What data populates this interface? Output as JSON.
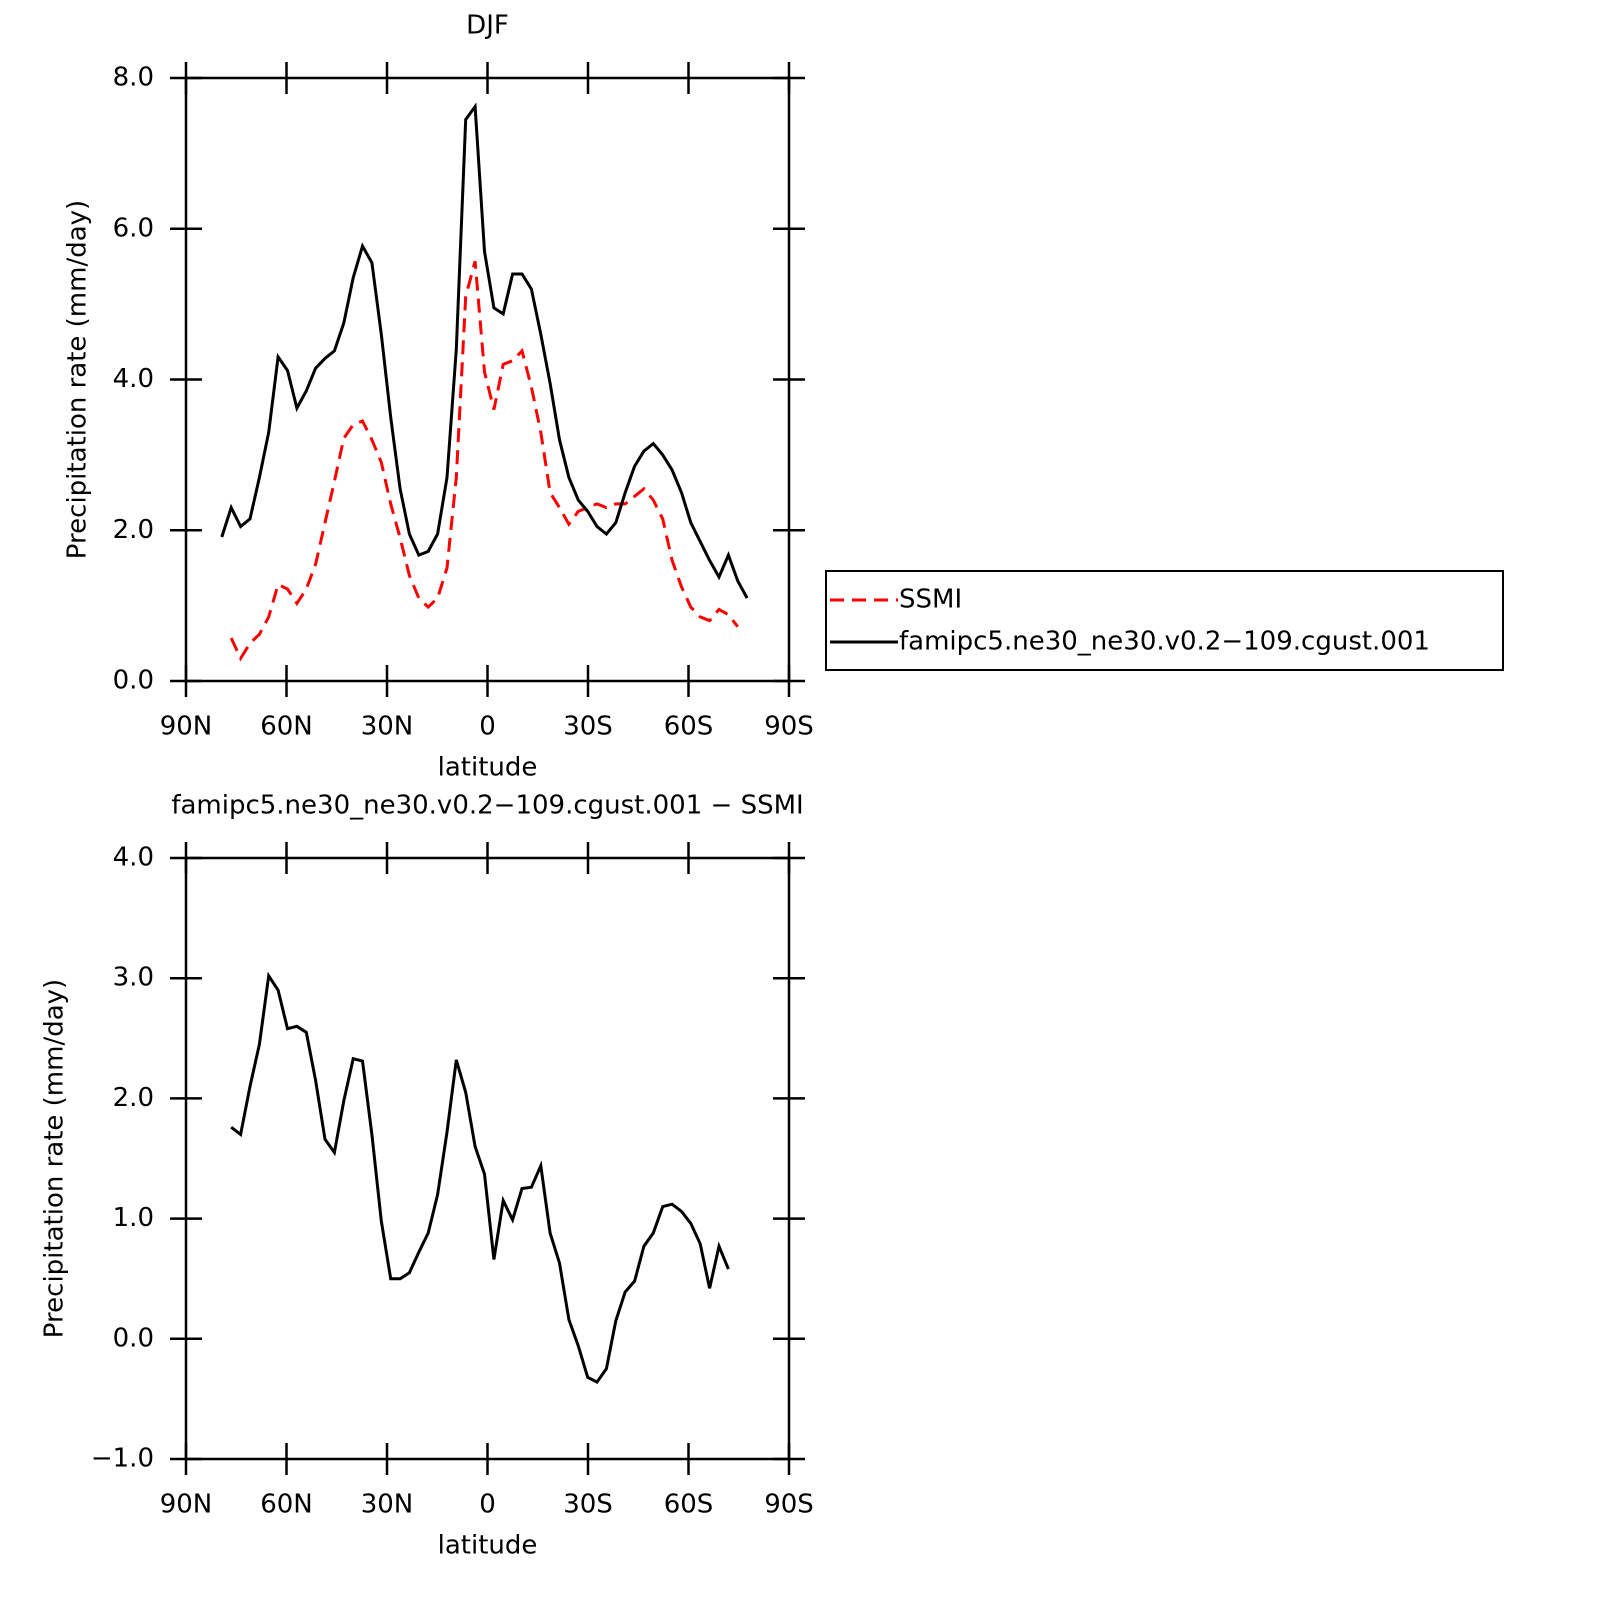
{
  "chart_data": [
    {
      "type": "line",
      "title": "DJF",
      "xlabel": "latitude",
      "ylabel": "Precipitation rate (mm/day)",
      "x": [
        79.3,
        76.5,
        73.7,
        70.9,
        68.1,
        65.3,
        62.5,
        59.7,
        56.9,
        54.1,
        51.3,
        48.5,
        45.7,
        42.9,
        40.1,
        37.3,
        34.5,
        31.7,
        28.9,
        26.1,
        23.3,
        20.5,
        17.7,
        14.9,
        12.1,
        9.3,
        6.5,
        3.7,
        0.9,
        -1.9,
        -4.7,
        -7.5,
        -10.3,
        -13.1,
        -15.9,
        -18.7,
        -21.5,
        -24.3,
        -27.1,
        -29.9,
        -32.7,
        -35.5,
        -38.3,
        -41.1,
        -43.9,
        -46.7,
        -49.5,
        -52.3,
        -55.1,
        -57.9,
        -60.7,
        -63.5,
        -66.3,
        -69.1,
        -71.9,
        -74.7,
        -77.5
      ],
      "series": [
        {
          "name": "SSMI",
          "color": "#ff0000",
          "line_style": "dashed",
          "values": [
            null,
            0.57,
            0.3,
            0.5,
            0.62,
            0.85,
            1.28,
            1.22,
            1.03,
            1.22,
            1.55,
            2.1,
            2.65,
            3.22,
            3.4,
            3.45,
            3.2,
            2.9,
            2.35,
            1.9,
            1.4,
            1.1,
            0.98,
            1.1,
            1.5,
            2.7,
            5.1,
            5.57,
            4.1,
            3.6,
            4.2,
            4.25,
            4.38,
            3.9,
            3.3,
            2.5,
            2.3,
            2.08,
            2.25,
            2.3,
            2.35,
            2.3,
            2.35,
            2.35,
            2.45,
            2.55,
            2.4,
            2.15,
            1.6,
            1.25,
            0.98,
            0.85,
            0.8,
            0.95,
            0.88,
            0.72,
            null
          ]
        },
        {
          "name": "famipc5.ne30_ne30.v0.2−109.cgust.001",
          "color": "#000000",
          "line_style": "solid",
          "values": [
            1.91,
            2.3,
            2.05,
            2.15,
            2.7,
            3.3,
            4.3,
            4.12,
            3.62,
            3.85,
            4.15,
            4.28,
            4.38,
            4.75,
            5.35,
            5.77,
            5.55,
            4.6,
            3.5,
            2.55,
            1.95,
            1.67,
            1.72,
            1.95,
            2.7,
            4.4,
            7.45,
            7.62,
            5.7,
            4.95,
            4.87,
            5.4,
            5.4,
            5.2,
            4.6,
            3.95,
            3.2,
            2.7,
            2.4,
            2.25,
            2.05,
            1.95,
            2.1,
            2.5,
            2.85,
            3.05,
            3.15,
            3.0,
            2.8,
            2.5,
            2.1,
            1.85,
            1.6,
            1.38,
            1.67,
            1.33,
            1.1
          ]
        }
      ],
      "xlim": [
        90,
        -90
      ],
      "xticks": [
        {
          "value": 90,
          "label": "90N"
        },
        {
          "value": 60,
          "label": "60N"
        },
        {
          "value": 30,
          "label": "30N"
        },
        0,
        {
          "value": -30,
          "label": "30S"
        },
        {
          "value": -60,
          "label": "60S"
        },
        {
          "value": -90,
          "label": "90S"
        }
      ],
      "ylim": [
        0,
        8
      ],
      "yticks": [
        {
          "value": 0,
          "label": "0.0"
        },
        {
          "value": 2,
          "label": "2.0"
        },
        {
          "value": 4,
          "label": "4.0"
        },
        {
          "value": 6,
          "label": "6.0"
        },
        {
          "value": 8,
          "label": "8.0"
        }
      ],
      "legend": "right"
    },
    {
      "type": "line",
      "title": "famipc5.ne30_ne30.v0.2−109.cgust.001 − SSMI",
      "xlabel": "latitude",
      "ylabel": "Precipitation rate (mm/day)",
      "x": [
        79.3,
        76.5,
        73.7,
        70.9,
        68.1,
        65.3,
        62.5,
        59.7,
        56.9,
        54.1,
        51.3,
        48.5,
        45.7,
        42.9,
        40.1,
        37.3,
        34.5,
        31.7,
        28.9,
        26.1,
        23.3,
        20.5,
        17.7,
        14.9,
        12.1,
        9.3,
        6.5,
        3.7,
        0.9,
        -1.9,
        -4.7,
        -7.5,
        -10.3,
        -13.1,
        -15.9,
        -18.7,
        -21.5,
        -24.3,
        -27.1,
        -29.9,
        -32.7,
        -35.5,
        -38.3,
        -41.1,
        -43.9,
        -46.7,
        -49.5,
        -52.3,
        -55.1,
        -57.9,
        -60.7,
        -63.5,
        -66.3,
        -69.1,
        -71.9,
        -74.7,
        -77.5
      ],
      "series": [
        {
          "color": "#000000",
          "line_style": "solid",
          "values": [
            null,
            1.76,
            1.7,
            2.1,
            2.45,
            3.02,
            2.9,
            2.58,
            2.6,
            2.55,
            2.15,
            1.66,
            1.55,
            1.98,
            2.33,
            2.31,
            1.7,
            0.98,
            0.5,
            0.5,
            0.55,
            0.72,
            0.88,
            1.2,
            1.72,
            2.32,
            2.05,
            1.6,
            1.37,
            0.66,
            1.15,
            0.99,
            1.25,
            1.26,
            1.44,
            0.88,
            0.63,
            0.16,
            -0.06,
            -0.32,
            -0.36,
            -0.25,
            0.15,
            0.39,
            0.48,
            0.77,
            0.88,
            1.1,
            1.12,
            1.06,
            0.96,
            0.79,
            0.42,
            0.77,
            0.58,
            null,
            null
          ]
        }
      ],
      "xlim": [
        90,
        -90
      ],
      "xticks": [
        {
          "value": 90,
          "label": "90N"
        },
        {
          "value": 60,
          "label": "60N"
        },
        {
          "value": 30,
          "label": "30N"
        },
        0,
        {
          "value": -30,
          "label": "30S"
        },
        {
          "value": -60,
          "label": "60S"
        },
        {
          "value": -90,
          "label": "90S"
        }
      ],
      "ylim": [
        -1,
        4
      ],
      "yticks": [
        {
          "value": -1,
          "label": "−1.0"
        },
        {
          "value": 0,
          "label": "0.0"
        },
        {
          "value": 1,
          "label": "1.0"
        },
        {
          "value": 2,
          "label": "2.0"
        },
        {
          "value": 3,
          "label": "3.0"
        },
        {
          "value": 4,
          "label": "4.0"
        }
      ]
    }
  ]
}
